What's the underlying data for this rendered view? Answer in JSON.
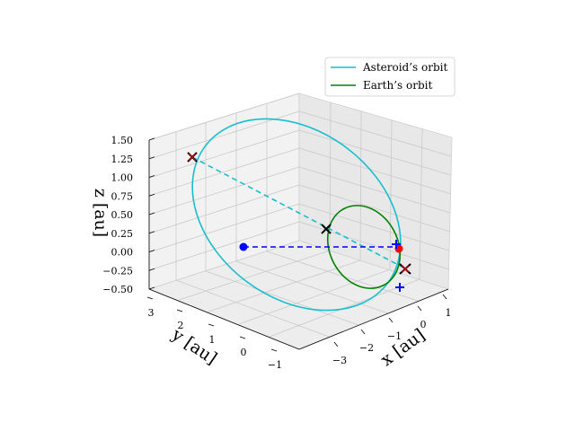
{
  "chart_data": {
    "type": "line",
    "projection": "3d",
    "xlabel": "x [au]",
    "ylabel": "y [au]",
    "zlabel": "z [au]",
    "xlim": [
      -3.8,
      1.5
    ],
    "ylim": [
      -1.3,
      3.6
    ],
    "zlim": [
      -0.5,
      1.5
    ],
    "x_ticks": [
      "−3",
      "−2",
      "−1",
      "0",
      "1"
    ],
    "y_ticks": [
      "−1",
      "0",
      "1",
      "2",
      "3"
    ],
    "z_ticks": [
      "−0.50",
      "−0.25",
      "0.00",
      "0.25",
      "0.50",
      "0.75",
      "1.00",
      "1.25",
      "1.50"
    ],
    "grid": true,
    "legend_position": "top-right",
    "series": [
      {
        "name": "Asteroid’s orbit",
        "color": "#17becf",
        "style": "solid",
        "shape": "ellipse",
        "a": 2.4,
        "e": 0.55,
        "inclination_deg": 28,
        "perihelion_point": [
          0.1,
          1.07,
          0.0
        ],
        "aphelion_point": [
          -3.5,
          3.5,
          1.25
        ]
      },
      {
        "name": "Earth’s orbit",
        "color": "#008000",
        "style": "solid",
        "shape": "circle",
        "radius": 1.0
      }
    ],
    "lines": [
      {
        "role": "asteroid-position-line",
        "color": "#17becf",
        "style": "dashed",
        "from": [
          -3.5,
          3.5,
          1.25
        ],
        "to": [
          0.57,
          0.79,
          -0.19
        ]
      },
      {
        "role": "earth-position-line",
        "color": "#0000ff",
        "style": "dashed",
        "from": [
          -0.8,
          2.0,
          0.0
        ],
        "to": [
          0.1,
          1.07,
          0.0
        ]
      }
    ],
    "points": [
      {
        "role": "sun-position",
        "marker": "circle",
        "color": "#0000ff",
        "xyz": [
          -0.8,
          2.0,
          0.0
        ]
      },
      {
        "role": "perihelion",
        "marker": "circle",
        "color": "#ff0000",
        "xyz": [
          0.1,
          1.07,
          0.0
        ]
      },
      {
        "role": "asteroid-aphelion",
        "marker": "x",
        "color": "#000000",
        "xyz": [
          -3.5,
          3.5,
          1.25
        ]
      },
      {
        "role": "asteroid-mid",
        "marker": "x",
        "color": "#000000",
        "xyz": [
          -1.4,
          1.3,
          0.42
        ]
      },
      {
        "role": "asteroid-near-earth",
        "marker": "x",
        "color": "#000000",
        "xyz": [
          0.57,
          0.79,
          -0.19
        ]
      },
      {
        "role": "red-cross-1",
        "marker": "x",
        "color": "#cc0000",
        "xyz": [
          -3.5,
          3.5,
          1.25
        ]
      },
      {
        "role": "red-cross-2",
        "marker": "x",
        "color": "#cc0000",
        "xyz": [
          0.57,
          0.79,
          -0.19
        ]
      },
      {
        "role": "earth-mark-1",
        "marker": "plus",
        "color": "#0000ff",
        "xyz": [
          0.1,
          1.07,
          0.0
        ]
      },
      {
        "role": "earth-mark-2",
        "marker": "plus",
        "color": "#0000ff",
        "xyz": [
          0.45,
          0.3,
          0.0
        ]
      }
    ]
  }
}
